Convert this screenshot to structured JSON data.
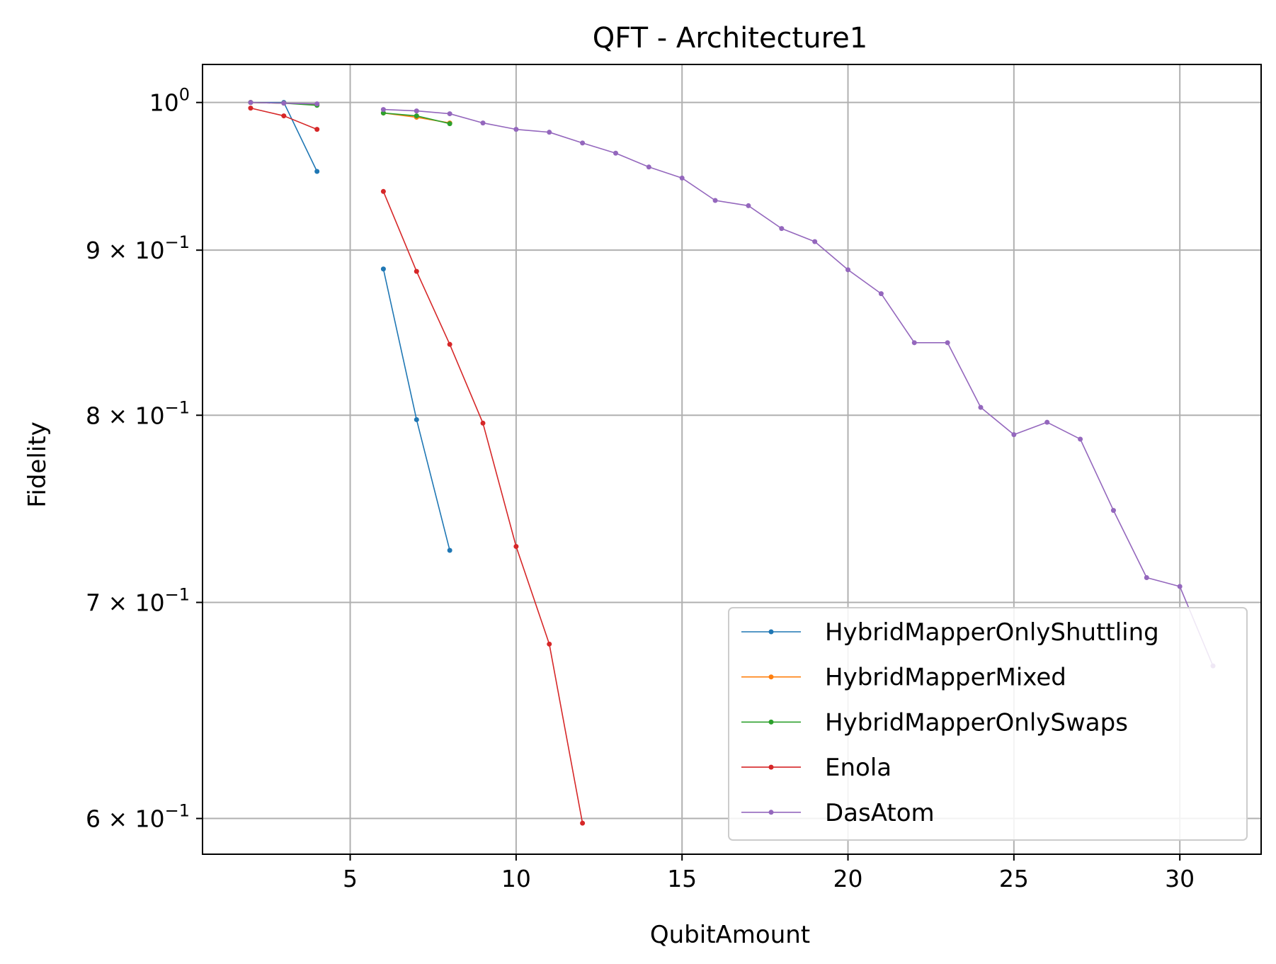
{
  "chart_data": {
    "type": "line",
    "title": "QFT - Architecture1",
    "xlabel": "QubitAmount",
    "ylabel": "Fidelity",
    "y_scale": "log",
    "xlim": [
      0.55,
      32.45
    ],
    "ylim": [
      0.5849,
      1.0275
    ],
    "grid": true,
    "legend_position": "lower-right",
    "x_ticks": [
      {
        "value": 5,
        "label": "5"
      },
      {
        "value": 10,
        "label": "10"
      },
      {
        "value": 15,
        "label": "15"
      },
      {
        "value": 20,
        "label": "20"
      },
      {
        "value": 25,
        "label": "25"
      },
      {
        "value": 30,
        "label": "30"
      }
    ],
    "y_ticks": [
      {
        "value": 1.0,
        "base": "10",
        "exp": "0"
      },
      {
        "value": 0.9,
        "base": "9 × 10",
        "exp": "−1"
      },
      {
        "value": 0.8,
        "base": "8 × 10",
        "exp": "−1"
      },
      {
        "value": 0.7,
        "base": "7 × 10",
        "exp": "−1"
      },
      {
        "value": 0.6,
        "base": "6 × 10",
        "exp": "−1"
      }
    ],
    "series": [
      {
        "name": "HybridMapperOnlyShuttling",
        "color": "#1f77b4",
        "x": [
          2,
          3,
          4,
          null,
          6,
          7,
          8
        ],
        "y": [
          1.0,
          1.0,
          0.952,
          null,
          0.888,
          0.7975,
          0.7265
        ]
      },
      {
        "name": "HybridMapperMixed",
        "color": "#ff7f0e",
        "x": [
          2,
          3,
          4,
          null,
          6,
          7,
          8
        ],
        "y": [
          1.0,
          0.9995,
          0.9985,
          null,
          0.9925,
          0.9895,
          0.9855
        ]
      },
      {
        "name": "HybridMapperOnlySwaps",
        "color": "#2ca02c",
        "x": [
          2,
          3,
          4,
          null,
          6,
          7,
          8
        ],
        "y": [
          1.0,
          0.9995,
          0.998,
          null,
          0.9925,
          0.9905,
          0.985
        ]
      },
      {
        "name": "Enola",
        "color": "#d62728",
        "x": [
          2,
          3,
          4,
          null,
          6,
          7,
          8,
          9,
          10,
          11,
          12
        ],
        "y": [
          0.996,
          0.9905,
          0.981,
          null,
          0.9385,
          0.8865,
          0.8415,
          0.7955,
          0.7285,
          0.6795,
          0.598
        ]
      },
      {
        "name": "DasAtom",
        "color": "#9467bd",
        "x": [
          2,
          3,
          4,
          null,
          6,
          7,
          8,
          9,
          10,
          11,
          12,
          13,
          14,
          15,
          16,
          17,
          18,
          19,
          20,
          21,
          22,
          23,
          24,
          25,
          26,
          27,
          28,
          29,
          30,
          31
        ],
        "y": [
          1.0,
          0.9995,
          0.999,
          null,
          0.995,
          0.994,
          0.992,
          0.9855,
          0.981,
          0.979,
          0.9715,
          0.9645,
          0.955,
          0.9475,
          0.9325,
          0.929,
          0.914,
          0.9055,
          0.8875,
          0.8725,
          0.8425,
          0.8425,
          0.8045,
          0.789,
          0.796,
          0.7865,
          0.7475,
          0.7125,
          0.708,
          0.669
        ]
      }
    ]
  }
}
